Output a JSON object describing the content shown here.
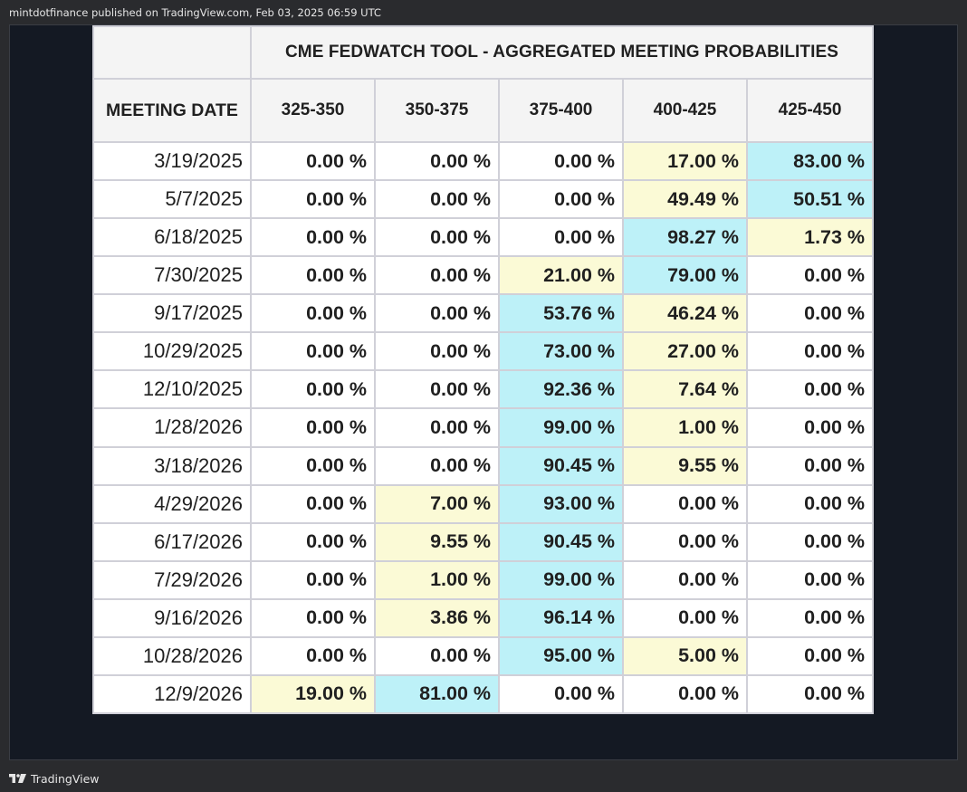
{
  "publish_line": "mintdotfinance published on TradingView.com, Feb 03, 2025 06:59 UTC",
  "footer": {
    "brand": "TradingView",
    "logo_icon": "tradingview-logo-icon"
  },
  "colors": {
    "highlight_yellow": "#fbfad6",
    "highlight_blue": "#bdf1f8"
  },
  "table": {
    "title": "CME FEDWATCH TOOL - AGGREGATED MEETING PROBABILITIES",
    "columns": [
      "MEETING DATE",
      "325-350",
      "350-375",
      "375-400",
      "400-425",
      "425-450"
    ],
    "rows": [
      {
        "date": "3/19/2025",
        "values": [
          "0.00 %",
          "0.00 %",
          "0.00 %",
          "17.00 %",
          "83.00 %"
        ],
        "highlight": [
          "",
          "",
          "",
          "yellow",
          "blue"
        ]
      },
      {
        "date": "5/7/2025",
        "values": [
          "0.00 %",
          "0.00 %",
          "0.00 %",
          "49.49 %",
          "50.51 %"
        ],
        "highlight": [
          "",
          "",
          "",
          "yellow",
          "blue"
        ]
      },
      {
        "date": "6/18/2025",
        "values": [
          "0.00 %",
          "0.00 %",
          "0.00 %",
          "98.27 %",
          "1.73 %"
        ],
        "highlight": [
          "",
          "",
          "",
          "blue",
          "yellow"
        ]
      },
      {
        "date": "7/30/2025",
        "values": [
          "0.00 %",
          "0.00 %",
          "21.00 %",
          "79.00 %",
          "0.00 %"
        ],
        "highlight": [
          "",
          "",
          "yellow",
          "blue",
          ""
        ]
      },
      {
        "date": "9/17/2025",
        "values": [
          "0.00 %",
          "0.00 %",
          "53.76 %",
          "46.24 %",
          "0.00 %"
        ],
        "highlight": [
          "",
          "",
          "blue",
          "yellow",
          ""
        ]
      },
      {
        "date": "10/29/2025",
        "values": [
          "0.00 %",
          "0.00 %",
          "73.00 %",
          "27.00 %",
          "0.00 %"
        ],
        "highlight": [
          "",
          "",
          "blue",
          "yellow",
          ""
        ]
      },
      {
        "date": "12/10/2025",
        "values": [
          "0.00 %",
          "0.00 %",
          "92.36 %",
          "7.64 %",
          "0.00 %"
        ],
        "highlight": [
          "",
          "",
          "blue",
          "yellow",
          ""
        ]
      },
      {
        "date": "1/28/2026",
        "values": [
          "0.00 %",
          "0.00 %",
          "99.00 %",
          "1.00 %",
          "0.00 %"
        ],
        "highlight": [
          "",
          "",
          "blue",
          "yellow",
          ""
        ]
      },
      {
        "date": "3/18/2026",
        "values": [
          "0.00 %",
          "0.00 %",
          "90.45 %",
          "9.55 %",
          "0.00 %"
        ],
        "highlight": [
          "",
          "",
          "blue",
          "yellow",
          ""
        ]
      },
      {
        "date": "4/29/2026",
        "values": [
          "0.00 %",
          "7.00 %",
          "93.00 %",
          "0.00 %",
          "0.00 %"
        ],
        "highlight": [
          "",
          "yellow",
          "blue",
          "",
          ""
        ]
      },
      {
        "date": "6/17/2026",
        "values": [
          "0.00 %",
          "9.55 %",
          "90.45 %",
          "0.00 %",
          "0.00 %"
        ],
        "highlight": [
          "",
          "yellow",
          "blue",
          "",
          ""
        ]
      },
      {
        "date": "7/29/2026",
        "values": [
          "0.00 %",
          "1.00 %",
          "99.00 %",
          "0.00 %",
          "0.00 %"
        ],
        "highlight": [
          "",
          "yellow",
          "blue",
          "",
          ""
        ]
      },
      {
        "date": "9/16/2026",
        "values": [
          "0.00 %",
          "3.86 %",
          "96.14 %",
          "0.00 %",
          "0.00 %"
        ],
        "highlight": [
          "",
          "yellow",
          "blue",
          "",
          ""
        ]
      },
      {
        "date": "10/28/2026",
        "values": [
          "0.00 %",
          "0.00 %",
          "95.00 %",
          "5.00 %",
          "0.00 %"
        ],
        "highlight": [
          "",
          "",
          "blue",
          "yellow",
          ""
        ]
      },
      {
        "date": "12/9/2026",
        "values": [
          "19.00 %",
          "81.00 %",
          "0.00 %",
          "0.00 %",
          "0.00 %"
        ],
        "highlight": [
          "yellow",
          "blue",
          "",
          "",
          ""
        ]
      }
    ]
  }
}
